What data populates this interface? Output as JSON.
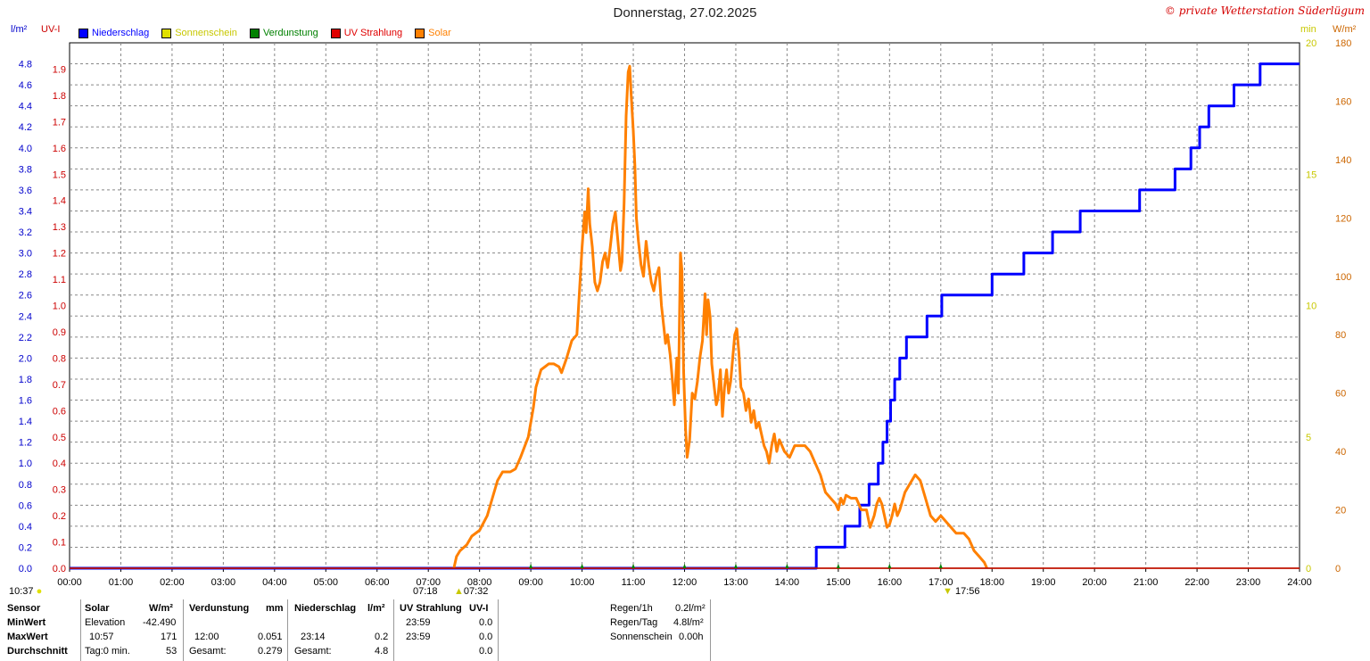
{
  "title": "Donnerstag, 27.02.2025",
  "copyright": "© private Wetterstation Süderlügum",
  "units": {
    "left_outer": "l/m²",
    "left_inner": "UV-I",
    "right_inner": "min",
    "right_outer": "W/m²"
  },
  "legend": [
    {
      "label": "Niederschlag",
      "color": "#0000ff",
      "text_color": "#0000ff"
    },
    {
      "label": "Sonnenschein",
      "color": "#e0e000",
      "text_color": "#c8c800"
    },
    {
      "label": "Verdunstung",
      "color": "#008000",
      "text_color": "#008000"
    },
    {
      "label": "UV Strahlung",
      "color": "#e00000",
      "text_color": "#e00000"
    },
    {
      "label": "Solar",
      "color": "#ff8000",
      "text_color": "#ff8000"
    }
  ],
  "chart_data": {
    "type": "line",
    "title": "Donnerstag, 27.02.2025",
    "x_ticks": [
      "00:00",
      "01:00",
      "02:00",
      "03:00",
      "04:00",
      "05:00",
      "06:00",
      "07:00",
      "08:00",
      "09:00",
      "10:00",
      "11:00",
      "12:00",
      "13:00",
      "14:00",
      "15:00",
      "16:00",
      "17:00",
      "18:00",
      "19:00",
      "20:00",
      "21:00",
      "22:00",
      "23:00",
      "24:00"
    ],
    "xlim_hours": [
      0,
      24
    ],
    "grid": true,
    "axes": {
      "precip": {
        "label": "l/m²",
        "ticks": [
          "0.0",
          "0.2",
          "0.4",
          "0.6",
          "0.8",
          "1.0",
          "1.2",
          "1.4",
          "1.6",
          "1.8",
          "2.0",
          "2.2",
          "2.4",
          "2.6",
          "2.8",
          "3.0",
          "3.2",
          "3.4",
          "3.6",
          "3.8",
          "4.0",
          "4.2",
          "4.4",
          "4.6",
          "4.8"
        ],
        "ylim": [
          0,
          5.0
        ],
        "color": "#0000cc"
      },
      "uv": {
        "label": "UV-I",
        "ticks": [
          "0.0",
          "0.1",
          "0.2",
          "0.3",
          "0.4",
          "0.5",
          "0.6",
          "0.7",
          "0.8",
          "0.9",
          "1.0",
          "1.1",
          "1.2",
          "1.3",
          "1.4",
          "1.5",
          "1.6",
          "1.7",
          "1.8",
          "1.9"
        ],
        "ylim": [
          0,
          2.0
        ],
        "color": "#cc0000"
      },
      "sun": {
        "label": "min",
        "ticks": [
          "0",
          "5",
          "10",
          "15",
          "20"
        ],
        "ylim": [
          0,
          20
        ],
        "color": "#c8c800"
      },
      "solar": {
        "label": "W/m²",
        "ticks": [
          "0",
          "20",
          "40",
          "60",
          "80",
          "100",
          "120",
          "140",
          "160",
          "180"
        ],
        "ylim": [
          0,
          180
        ],
        "color": "#cc6600"
      }
    },
    "series": [
      {
        "name": "Niederschlag",
        "axis": "precip",
        "step": true,
        "color": "#0000ff",
        "points": [
          [
            0,
            0
          ],
          [
            14.57,
            0
          ],
          [
            14.57,
            0.2
          ],
          [
            15.13,
            0.2
          ],
          [
            15.13,
            0.4
          ],
          [
            15.42,
            0.4
          ],
          [
            15.42,
            0.6
          ],
          [
            15.6,
            0.6
          ],
          [
            15.6,
            0.8
          ],
          [
            15.78,
            0.8
          ],
          [
            15.78,
            1.0
          ],
          [
            15.87,
            1.0
          ],
          [
            15.87,
            1.2
          ],
          [
            15.95,
            1.2
          ],
          [
            15.95,
            1.4
          ],
          [
            16.02,
            1.4
          ],
          [
            16.02,
            1.6
          ],
          [
            16.1,
            1.6
          ],
          [
            16.1,
            1.8
          ],
          [
            16.2,
            1.8
          ],
          [
            16.2,
            2.0
          ],
          [
            16.33,
            2.0
          ],
          [
            16.33,
            2.2
          ],
          [
            16.73,
            2.2
          ],
          [
            16.73,
            2.4
          ],
          [
            17.02,
            2.4
          ],
          [
            17.02,
            2.6
          ],
          [
            18.0,
            2.6
          ],
          [
            18.0,
            2.8
          ],
          [
            18.62,
            2.8
          ],
          [
            18.62,
            3.0
          ],
          [
            19.18,
            3.0
          ],
          [
            19.18,
            3.2
          ],
          [
            19.72,
            3.2
          ],
          [
            19.72,
            3.4
          ],
          [
            20.88,
            3.4
          ],
          [
            20.88,
            3.6
          ],
          [
            21.57,
            3.6
          ],
          [
            21.57,
            3.8
          ],
          [
            21.88,
            3.8
          ],
          [
            21.88,
            4.0
          ],
          [
            22.05,
            4.0
          ],
          [
            22.05,
            4.2
          ],
          [
            22.23,
            4.2
          ],
          [
            22.23,
            4.4
          ],
          [
            22.72,
            4.4
          ],
          [
            22.72,
            4.6
          ],
          [
            23.23,
            4.6
          ],
          [
            23.23,
            4.8
          ],
          [
            24.0,
            4.8
          ]
        ]
      },
      {
        "name": "Solar",
        "axis": "solar",
        "step": false,
        "color": "#ff8000",
        "points": [
          [
            7.5,
            0
          ],
          [
            7.55,
            4
          ],
          [
            7.62,
            6
          ],
          [
            7.75,
            8
          ],
          [
            7.85,
            11
          ],
          [
            8.0,
            13
          ],
          [
            8.15,
            18
          ],
          [
            8.25,
            24
          ],
          [
            8.35,
            30
          ],
          [
            8.45,
            33
          ],
          [
            8.6,
            33
          ],
          [
            8.7,
            34
          ],
          [
            8.8,
            38
          ],
          [
            8.95,
            45
          ],
          [
            9.05,
            55
          ],
          [
            9.1,
            62
          ],
          [
            9.2,
            68
          ],
          [
            9.35,
            70
          ],
          [
            9.45,
            70
          ],
          [
            9.55,
            69
          ],
          [
            9.6,
            67
          ],
          [
            9.7,
            72
          ],
          [
            9.8,
            78
          ],
          [
            9.9,
            80
          ],
          [
            9.95,
            95
          ],
          [
            10.0,
            110
          ],
          [
            10.05,
            122
          ],
          [
            10.08,
            115
          ],
          [
            10.12,
            130
          ],
          [
            10.15,
            118
          ],
          [
            10.2,
            110
          ],
          [
            10.25,
            98
          ],
          [
            10.3,
            95
          ],
          [
            10.35,
            98
          ],
          [
            10.4,
            105
          ],
          [
            10.45,
            108
          ],
          [
            10.5,
            103
          ],
          [
            10.55,
            110
          ],
          [
            10.6,
            118
          ],
          [
            10.65,
            122
          ],
          [
            10.7,
            112
          ],
          [
            10.75,
            102
          ],
          [
            10.78,
            105
          ],
          [
            10.82,
            125
          ],
          [
            10.86,
            155
          ],
          [
            10.9,
            170
          ],
          [
            10.93,
            172
          ],
          [
            10.96,
            162
          ],
          [
            11.0,
            150
          ],
          [
            11.03,
            138
          ],
          [
            11.06,
            120
          ],
          [
            11.1,
            112
          ],
          [
            11.15,
            104
          ],
          [
            11.2,
            100
          ],
          [
            11.25,
            112
          ],
          [
            11.3,
            104
          ],
          [
            11.35,
            98
          ],
          [
            11.4,
            95
          ],
          [
            11.45,
            100
          ],
          [
            11.5,
            103
          ],
          [
            11.55,
            90
          ],
          [
            11.6,
            82
          ],
          [
            11.63,
            77
          ],
          [
            11.67,
            80
          ],
          [
            11.72,
            73
          ],
          [
            11.76,
            65
          ],
          [
            11.8,
            56
          ],
          [
            11.85,
            72
          ],
          [
            11.88,
            60
          ],
          [
            11.92,
            108
          ],
          [
            11.95,
            102
          ],
          [
            11.98,
            68
          ],
          [
            12.02,
            48
          ],
          [
            12.05,
            38
          ],
          [
            12.1,
            44
          ],
          [
            12.15,
            60
          ],
          [
            12.2,
            58
          ],
          [
            12.25,
            64
          ],
          [
            12.3,
            72
          ],
          [
            12.35,
            78
          ],
          [
            12.4,
            94
          ],
          [
            12.43,
            80
          ],
          [
            12.46,
            92
          ],
          [
            12.5,
            86
          ],
          [
            12.53,
            70
          ],
          [
            12.58,
            62
          ],
          [
            12.62,
            56
          ],
          [
            12.65,
            58
          ],
          [
            12.7,
            68
          ],
          [
            12.74,
            52
          ],
          [
            12.78,
            62
          ],
          [
            12.82,
            68
          ],
          [
            12.86,
            60
          ],
          [
            12.9,
            64
          ],
          [
            12.94,
            72
          ],
          [
            12.98,
            80
          ],
          [
            13.02,
            82
          ],
          [
            13.06,
            74
          ],
          [
            13.1,
            62
          ],
          [
            13.15,
            60
          ],
          [
            13.2,
            54
          ],
          [
            13.25,
            58
          ],
          [
            13.3,
            50
          ],
          [
            13.35,
            54
          ],
          [
            13.4,
            48
          ],
          [
            13.45,
            50
          ],
          [
            13.5,
            46
          ],
          [
            13.55,
            42
          ],
          [
            13.6,
            40
          ],
          [
            13.65,
            36
          ],
          [
            13.7,
            42
          ],
          [
            13.75,
            46
          ],
          [
            13.8,
            40
          ],
          [
            13.85,
            44
          ],
          [
            13.9,
            42
          ],
          [
            13.95,
            40
          ],
          [
            14.05,
            38
          ],
          [
            14.15,
            42
          ],
          [
            14.25,
            42
          ],
          [
            14.35,
            42
          ],
          [
            14.45,
            40
          ],
          [
            14.55,
            36
          ],
          [
            14.65,
            32
          ],
          [
            14.75,
            26
          ],
          [
            14.85,
            24
          ],
          [
            14.95,
            22
          ],
          [
            15.0,
            20
          ],
          [
            15.05,
            24
          ],
          [
            15.1,
            22
          ],
          [
            15.15,
            25
          ],
          [
            15.25,
            24
          ],
          [
            15.35,
            24
          ],
          [
            15.45,
            20
          ],
          [
            15.55,
            20
          ],
          [
            15.62,
            14
          ],
          [
            15.7,
            18
          ],
          [
            15.75,
            22
          ],
          [
            15.8,
            24
          ],
          [
            15.85,
            22
          ],
          [
            15.9,
            18
          ],
          [
            15.95,
            14
          ],
          [
            16.0,
            15
          ],
          [
            16.05,
            18
          ],
          [
            16.1,
            22
          ],
          [
            16.15,
            18
          ],
          [
            16.2,
            20
          ],
          [
            16.3,
            26
          ],
          [
            16.4,
            29
          ],
          [
            16.5,
            32
          ],
          [
            16.6,
            30
          ],
          [
            16.7,
            24
          ],
          [
            16.8,
            18
          ],
          [
            16.9,
            16
          ],
          [
            17.0,
            18
          ],
          [
            17.1,
            16
          ],
          [
            17.2,
            14
          ],
          [
            17.3,
            12
          ],
          [
            17.45,
            12
          ],
          [
            17.55,
            10
          ],
          [
            17.65,
            6
          ],
          [
            17.75,
            4
          ],
          [
            17.85,
            2
          ],
          [
            17.9,
            0
          ]
        ]
      },
      {
        "name": "Verdunstung",
        "axis": "precip",
        "step": false,
        "color": "#008000",
        "points": [
          [
            0,
            0
          ],
          [
            24,
            0
          ]
        ]
      },
      {
        "name": "UV Strahlung",
        "axis": "uv",
        "step": false,
        "color": "#e00000",
        "points": [
          [
            0,
            0
          ],
          [
            24,
            0
          ]
        ]
      }
    ],
    "markers": [
      {
        "hour": 9.0,
        "color": "#008000"
      },
      {
        "hour": 10.0,
        "color": "#008000"
      },
      {
        "hour": 11.0,
        "color": "#008000"
      },
      {
        "hour": 12.0,
        "color": "#008000"
      },
      {
        "hour": 13.0,
        "color": "#008000"
      },
      {
        "hour": 14.0,
        "color": "#008000"
      },
      {
        "hour": 15.0,
        "color": "#008000"
      },
      {
        "hour": 16.0,
        "color": "#008000"
      },
      {
        "hour": 17.0,
        "color": "#008000"
      }
    ],
    "sun_events": {
      "moon": "10:37",
      "sunrise_civil": "07:18",
      "sunrise": "07:32",
      "sunset": "17:56"
    }
  },
  "stats": {
    "headers": {
      "sensor": "Sensor",
      "solar": "Solar",
      "solar_unit": "W/m²",
      "verdunstung": "Verdunstung",
      "verdunstung_unit": "mm",
      "niederschlag": "Niederschlag",
      "niederschlag_unit": "l/m²",
      "uv": "UV Strahlung",
      "uv_unit": "UV-I"
    },
    "rows": [
      {
        "label": "MinWert",
        "solar_time": "Elevation",
        "solar_val": "-42.490",
        "verd_time": "",
        "verd_val": "",
        "nied_time": "",
        "nied_val": "",
        "uv_time": "23:59",
        "uv_val": "0.0"
      },
      {
        "label": "MaxWert",
        "solar_time": "10:57",
        "solar_val": "171",
        "verd_time": "12:00",
        "verd_val": "0.051",
        "nied_time": "23:14",
        "nied_val": "0.2",
        "uv_time": "23:59",
        "uv_val": "0.0"
      },
      {
        "label": "Durchschnitt",
        "solar_time": "Tag:0 min.",
        "solar_val": "53",
        "verd_time": "Gesamt:",
        "verd_val": "0.279",
        "nied_time": "Gesamt:",
        "nied_val": "4.8",
        "uv_time": "",
        "uv_val": "0.0"
      }
    ],
    "summary": [
      {
        "label": "Regen/1h",
        "value": "0.2l/m²"
      },
      {
        "label": "Regen/Tag",
        "value": "4.8l/m²"
      },
      {
        "label": "Sonnenschein",
        "value": "0.00h"
      }
    ]
  }
}
